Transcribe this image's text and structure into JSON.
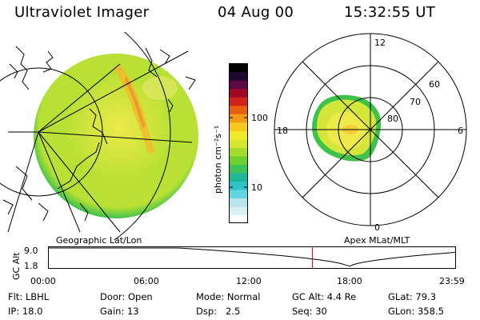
{
  "header": {
    "instrument": "Ultraviolet Imager",
    "date": "04 Aug 00",
    "time": "15:32:55 UT"
  },
  "colorbar": {
    "unit_label": "photon cm⁻²s⁻¹",
    "ticks": [
      "100",
      "10"
    ],
    "colors": [
      "#ffffff",
      "#d8f0f4",
      "#b8e4ec",
      "#5fd6e0",
      "#2ec3c8",
      "#1db89a",
      "#3cc457",
      "#6fcf2e",
      "#a5dc2a",
      "#d6e62a",
      "#f2ea28",
      "#f7c81f",
      "#f39a12",
      "#e8600e",
      "#d2201a",
      "#a00828",
      "#5b0a45",
      "#1b0930",
      "#000000"
    ]
  },
  "left_panel": {
    "title": "Geographic Lat/Lon",
    "colors": {
      "edge": "#3fc24a",
      "mid": "#b9e034",
      "core": "#eeea4a",
      "arc": "#f4b92c"
    }
  },
  "right_panel": {
    "title": "Apex MLat/MLT",
    "mlt_labels": {
      "top": "12",
      "bottom": "0",
      "left": "18",
      "right": "6"
    },
    "lat_labels": [
      "60",
      "70",
      "80"
    ]
  },
  "altitude_plot": {
    "axis_label": "GC Alt",
    "y_ticks": [
      "9.0",
      "1.8"
    ],
    "x_ticks": [
      "00:00",
      "06:00",
      "12:00",
      "18:00",
      "23:59"
    ],
    "current_time_marker": "15:32:55",
    "marker_color": "#e00000"
  },
  "info": {
    "flt": {
      "label": "Flt:",
      "value": "LBHL"
    },
    "ip": {
      "label": "IP:",
      "value": "18.0"
    },
    "door": {
      "label": "Door:",
      "value": "Open"
    },
    "gain": {
      "label": "Gain:",
      "value": "13"
    },
    "mode": {
      "label": "Mode:",
      "value": "Normal"
    },
    "dsp": {
      "label": "Dsp:",
      "value": "2.5"
    },
    "gcalt": {
      "label": "GC Alt:",
      "value": "4.4 Re"
    },
    "seq": {
      "label": "Seq:",
      "value": "30"
    },
    "glat": {
      "label": "GLat:",
      "value": "79.3"
    },
    "glon": {
      "label": "GLon:",
      "value": "358.5"
    }
  }
}
